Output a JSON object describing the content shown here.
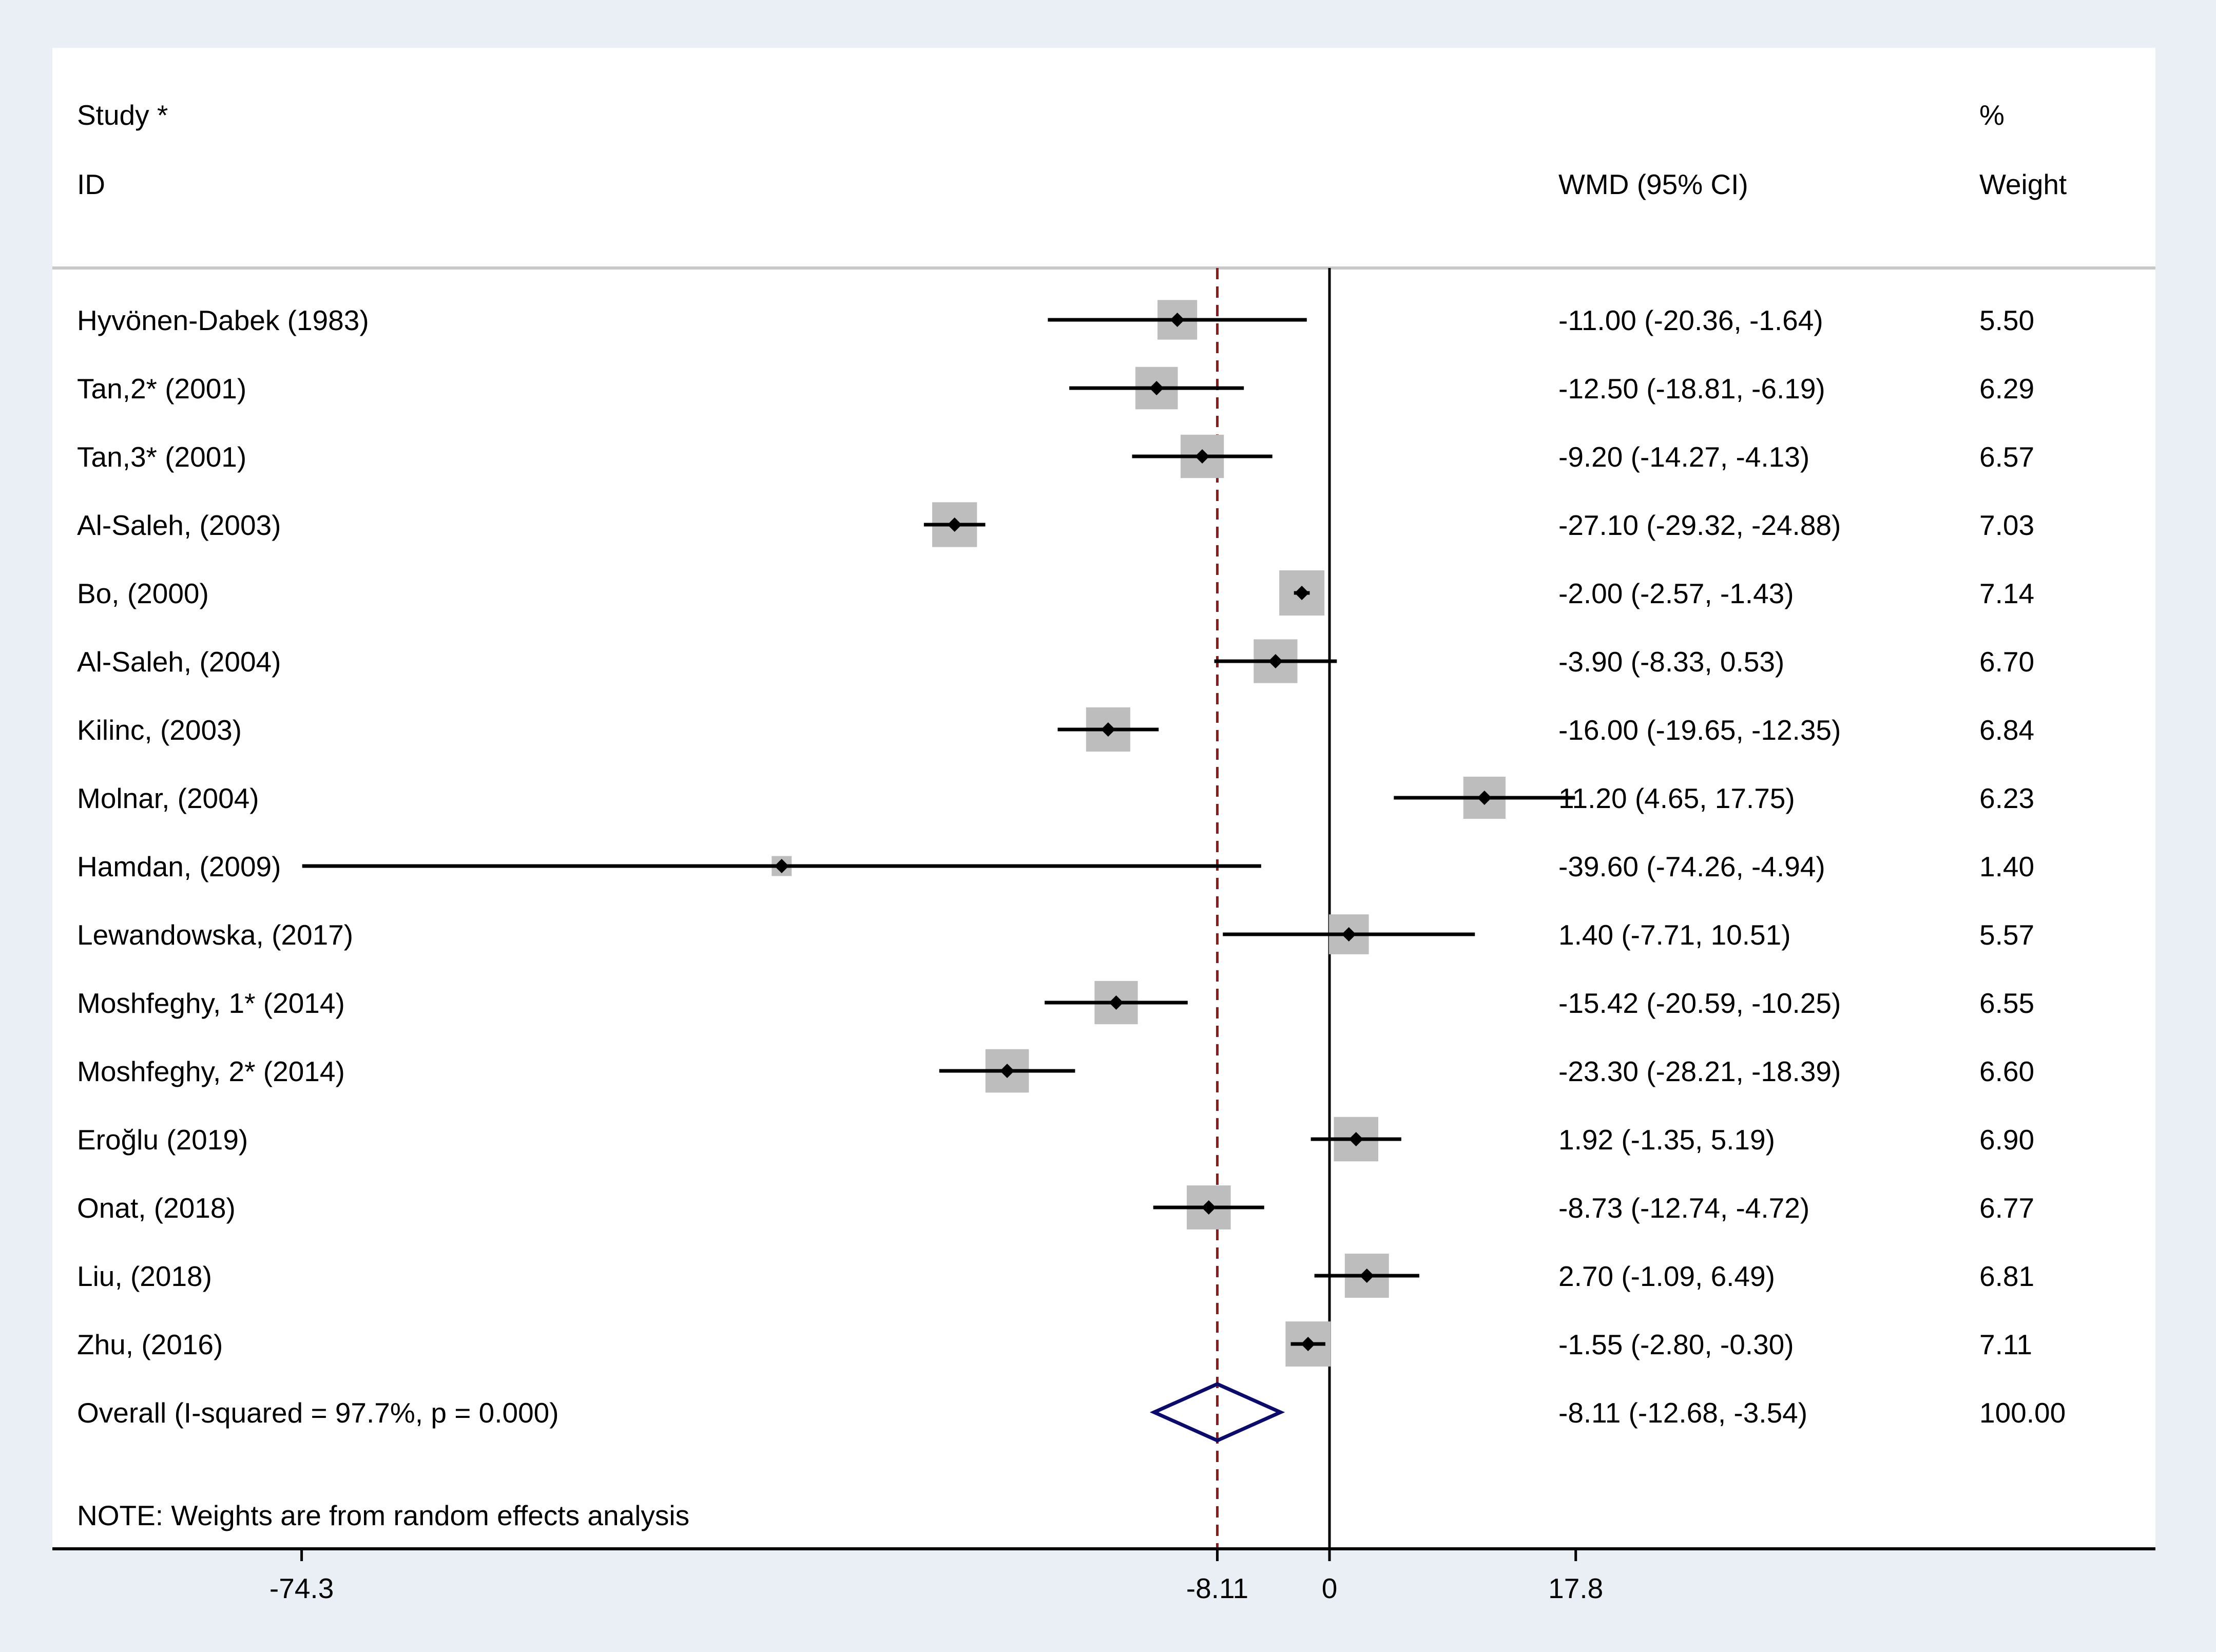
{
  "chart_data": {
    "type": "forest",
    "header": {
      "study": "Study",
      "id": "ID",
      "effect": "WMD (95% CI)",
      "weight_top": "%",
      "weight_bottom": "Weight"
    },
    "studies": [
      {
        "label": "Hyvönen-Dabek (1983)",
        "est": -11.0,
        "lo": -20.36,
        "hi": -1.64,
        "ci_text": "-11.00 (-20.36, -1.64)",
        "weight": 5.5,
        "weight_text": "5.50"
      },
      {
        "label": "Tan,2* (2001)",
        "est": -12.5,
        "lo": -18.81,
        "hi": -6.19,
        "ci_text": "-12.50 (-18.81, -6.19)",
        "weight": 6.29,
        "weight_text": "6.29"
      },
      {
        "label": "Tan,3* (2001)",
        "est": -9.2,
        "lo": -14.27,
        "hi": -4.13,
        "ci_text": "-9.20 (-14.27, -4.13)",
        "weight": 6.57,
        "weight_text": "6.57"
      },
      {
        "label": "Al-Saleh, (2003)",
        "est": -27.1,
        "lo": -29.32,
        "hi": -24.88,
        "ci_text": "-27.10 (-29.32, -24.88)",
        "weight": 7.03,
        "weight_text": "7.03"
      },
      {
        "label": "Bo, (2000)",
        "est": -2.0,
        "lo": -2.57,
        "hi": -1.43,
        "ci_text": "-2.00 (-2.57, -1.43)",
        "weight": 7.14,
        "weight_text": "7.14"
      },
      {
        "label": "Al-Saleh, (2004)",
        "est": -3.9,
        "lo": -8.33,
        "hi": 0.53,
        "ci_text": "-3.90 (-8.33, 0.53)",
        "weight": 6.7,
        "weight_text": "6.70"
      },
      {
        "label": "Kilinc, (2003)",
        "est": -16.0,
        "lo": -19.65,
        "hi": -12.35,
        "ci_text": "-16.00 (-19.65, -12.35)",
        "weight": 6.84,
        "weight_text": "6.84"
      },
      {
        "label": "Molnar,  (2004)",
        "est": 11.2,
        "lo": 4.65,
        "hi": 17.75,
        "ci_text": "11.20 (4.65, 17.75)",
        "weight": 6.23,
        "weight_text": "6.23"
      },
      {
        "label": "Hamdan, (2009)",
        "est": -39.6,
        "lo": -74.26,
        "hi": -4.94,
        "ci_text": "-39.60 (-74.26, -4.94)",
        "weight": 1.4,
        "weight_text": "1.40"
      },
      {
        "label": "Lewandowska,  (2017)",
        "est": 1.4,
        "lo": -7.71,
        "hi": 10.51,
        "ci_text": "1.40 (-7.71, 10.51)",
        "weight": 5.57,
        "weight_text": "5.57"
      },
      {
        "label": "Moshfeghy, 1* (2014)",
        "est": -15.42,
        "lo": -20.59,
        "hi": -10.25,
        "ci_text": "-15.42 (-20.59, -10.25)",
        "weight": 6.55,
        "weight_text": "6.55"
      },
      {
        "label": "Moshfeghy, 2* (2014)",
        "est": -23.3,
        "lo": -28.21,
        "hi": -18.39,
        "ci_text": "-23.30 (-28.21, -18.39)",
        "weight": 6.6,
        "weight_text": "6.60"
      },
      {
        "label": "Eroğlu (2019)",
        "est": 1.92,
        "lo": -1.35,
        "hi": 5.19,
        "ci_text": "1.92 (-1.35, 5.19)",
        "weight": 6.9,
        "weight_text": "6.90"
      },
      {
        "label": "Onat,  (2018)",
        "est": -8.73,
        "lo": -12.74,
        "hi": -4.72,
        "ci_text": "-8.73 (-12.74, -4.72)",
        "weight": 6.77,
        "weight_text": "6.77"
      },
      {
        "label": "Liu, (2018)",
        "est": 2.7,
        "lo": -1.09,
        "hi": 6.49,
        "ci_text": "2.70 (-1.09, 6.49)",
        "weight": 6.81,
        "weight_text": "6.81"
      },
      {
        "label": "Zhu, (2016)",
        "est": -1.55,
        "lo": -2.8,
        "hi": -0.3,
        "ci_text": "-1.55 (-2.80, -0.30)",
        "weight": 7.11,
        "weight_text": "7.11"
      }
    ],
    "overall": {
      "label": "Overall  (I-squared = 97.7%, p = 0.000)",
      "est": -8.11,
      "lo": -12.68,
      "hi": -3.54,
      "ci_text": "-8.11 (-12.68, -3.54)",
      "weight_text": "100.00"
    },
    "note": "NOTE: Weights are from random effects analysis",
    "x_ticks": [
      {
        "value": -74.3,
        "label": "-74.3"
      },
      {
        "value": -8.11,
        "label": "-8.11"
      },
      {
        "value": 0,
        "label": "0"
      },
      {
        "value": 17.8,
        "label": "17.8"
      }
    ],
    "null_line": 0,
    "colors": {
      "background": "#e9eff4",
      "panel": "#ffffff",
      "box": "#bdbdbd",
      "line": "#000000",
      "overall_line": "#8b1a1a",
      "diamond": "#0b0b6e"
    }
  }
}
